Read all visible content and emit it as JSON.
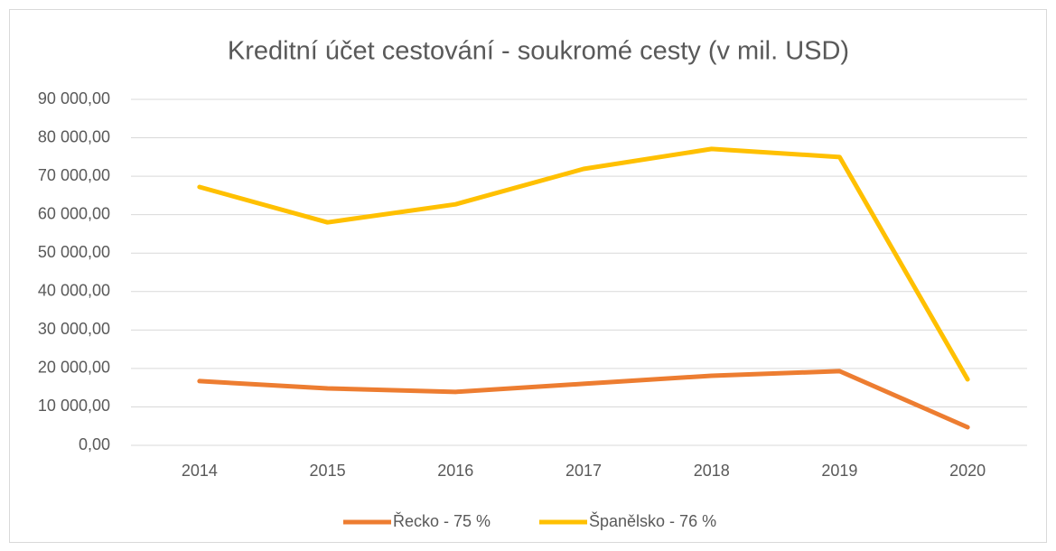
{
  "chart_data": {
    "type": "line",
    "title": "Kreditní účet cestování - soukromé cesty (v mil. USD)",
    "categories": [
      "2014",
      "2015",
      "2016",
      "2017",
      "2018",
      "2019",
      "2020"
    ],
    "series": [
      {
        "name": "Řecko - 75 %",
        "color": "#ED7D31",
        "values": [
          16700,
          14800,
          13900,
          16000,
          18100,
          19300,
          4700
        ]
      },
      {
        "name": "Španělsko - 76 %",
        "color": "#FFC000",
        "values": [
          67200,
          58000,
          62700,
          71900,
          77100,
          75000,
          17150
        ]
      }
    ],
    "ylim": [
      0,
      90000
    ],
    "yticks": [
      {
        "value": 0,
        "label": "0,00"
      },
      {
        "value": 10000,
        "label": "10 000,00"
      },
      {
        "value": 20000,
        "label": "20 000,00"
      },
      {
        "value": 30000,
        "label": "30 000,00"
      },
      {
        "value": 40000,
        "label": "40 000,00"
      },
      {
        "value": 50000,
        "label": "50 000,00"
      },
      {
        "value": 60000,
        "label": "60 000,00"
      },
      {
        "value": 70000,
        "label": "70 000,00"
      },
      {
        "value": 80000,
        "label": "80 000,00"
      },
      {
        "value": 90000,
        "label": "90 000,00"
      }
    ],
    "grid": true,
    "legend": "bottom"
  }
}
